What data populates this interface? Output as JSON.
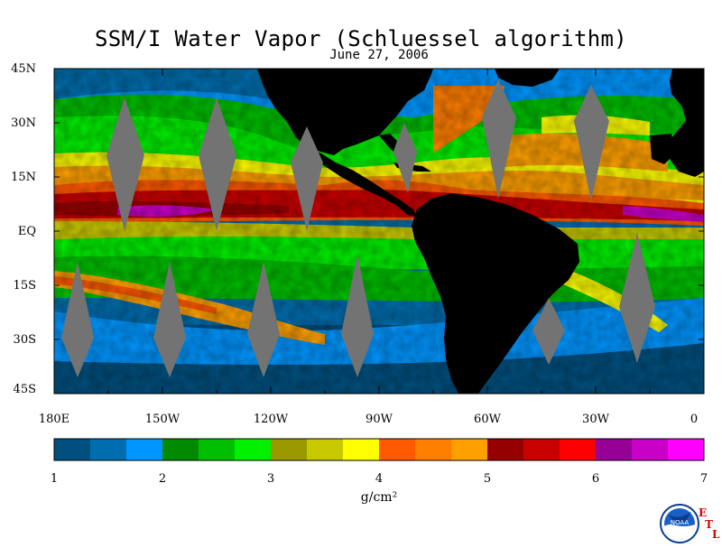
{
  "title": "SSM/I Water Vapor (Schluessel algorithm)",
  "date": "June 27, 2006",
  "lat_labels": [
    "45N",
    "30N",
    "15N",
    "EQ",
    "15S",
    "30S",
    "45S"
  ],
  "lon_labels": [
    "180E",
    "150W",
    "120W",
    "90W",
    "60W",
    "30W",
    "0"
  ],
  "colorbar": {
    "ticks": [
      "1",
      "2",
      "3",
      "4",
      "5",
      "6",
      "7"
    ],
    "units": "g/cm²",
    "colors": [
      "#00507f",
      "#006eae",
      "#0096ff",
      "#008a00",
      "#00bf00",
      "#00f000",
      "#9a9a00",
      "#c8c800",
      "#ffff00",
      "#ff5a00",
      "#ff7e00",
      "#ffa000",
      "#960000",
      "#c80000",
      "#ff0000",
      "#960096",
      "#c800c8",
      "#ff00ff"
    ]
  },
  "logo": {
    "agency": "NOAA",
    "etl_letters": [
      "E",
      "T",
      "L"
    ]
  },
  "icons": {
    "logo": "noaa-logo-icon"
  }
}
